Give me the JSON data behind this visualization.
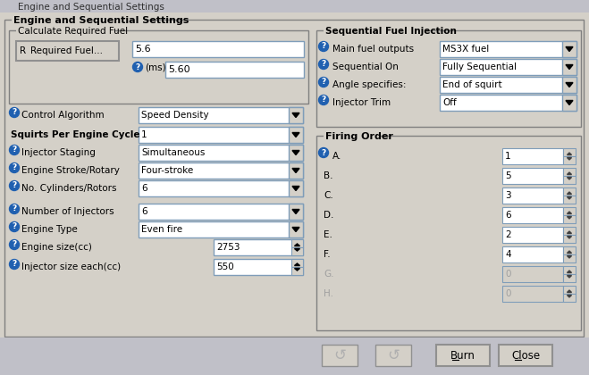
{
  "title_bar_text": "Engine and Sequential Settings",
  "title_bg": "#c0c0c0",
  "dialog_bg": "#d4d0c8",
  "group_bg": "#d4d0c8",
  "inner_bg": "#d4d0c8",
  "title": "Engine and Sequential Settings",
  "left_group_title": "Calculate Required Fuel",
  "right_group_title": "Sequential Fuel Injection",
  "firing_group_title": "Firing Order",
  "req_fuel_value": "5.6",
  "ms_label": "(ms)",
  "ms_value": "5.60",
  "left_rows": [
    {
      "label": "Control Algorithm",
      "value": "Speed Density",
      "has_help": true,
      "bold": false,
      "type": "dropdown"
    },
    {
      "label": "Squirts Per Engine Cycle",
      "value": "1",
      "bold": true,
      "has_help": false,
      "type": "dropdown"
    },
    {
      "label": "Injector Staging",
      "value": "Simultaneous",
      "has_help": true,
      "bold": false,
      "type": "dropdown"
    },
    {
      "label": "Engine Stroke/Rotary",
      "value": "Four-stroke",
      "has_help": true,
      "bold": false,
      "type": "dropdown"
    },
    {
      "label": "No. Cylinders/Rotors",
      "value": "6",
      "has_help": true,
      "bold": false,
      "type": "dropdown"
    }
  ],
  "left_rows2": [
    {
      "label": "Number of Injectors",
      "value": "6",
      "has_help": true,
      "type": "dropdown"
    },
    {
      "label": "Engine Type",
      "value": "Even fire",
      "has_help": true,
      "type": "dropdown"
    },
    {
      "label": "Engine size(cc)",
      "value": "2753",
      "has_help": true,
      "type": "spinner"
    },
    {
      "label": "Injector size each(cc)",
      "value": "550",
      "has_help": true,
      "type": "spinner"
    }
  ],
  "right_rows": [
    {
      "label": "Main fuel outputs",
      "value": "MS3X fuel",
      "has_help": true,
      "type": "dropdown"
    },
    {
      "label": "Sequential On",
      "value": "Fully Sequential",
      "has_help": true,
      "type": "dropdown"
    },
    {
      "label": "Angle specifies:",
      "value": "End of squirt",
      "has_help": true,
      "type": "dropdown"
    },
    {
      "label": "Injector Trim",
      "value": "Off",
      "has_help": true,
      "type": "dropdown"
    }
  ],
  "firing_order": [
    {
      "label": "A.",
      "value": "1",
      "active": true
    },
    {
      "label": "B.",
      "value": "5",
      "active": true
    },
    {
      "label": "C.",
      "value": "3",
      "active": true
    },
    {
      "label": "D.",
      "value": "6",
      "active": true
    },
    {
      "label": "E.",
      "value": "2",
      "active": true
    },
    {
      "label": "F.",
      "value": "4",
      "active": true
    },
    {
      "label": "G.",
      "value": "0",
      "active": false
    },
    {
      "label": "H.",
      "value": "0",
      "active": false
    }
  ],
  "btn_burn": "Burn",
  "btn_close": "Close",
  "help_color": "#2060b0",
  "text_color": "#000000",
  "disabled_color": "#a0a0a0",
  "field_bg": "#ffffff",
  "field_border": "#7f9db9",
  "btn_bg": "#d4d0c8",
  "border_color": "#808080"
}
